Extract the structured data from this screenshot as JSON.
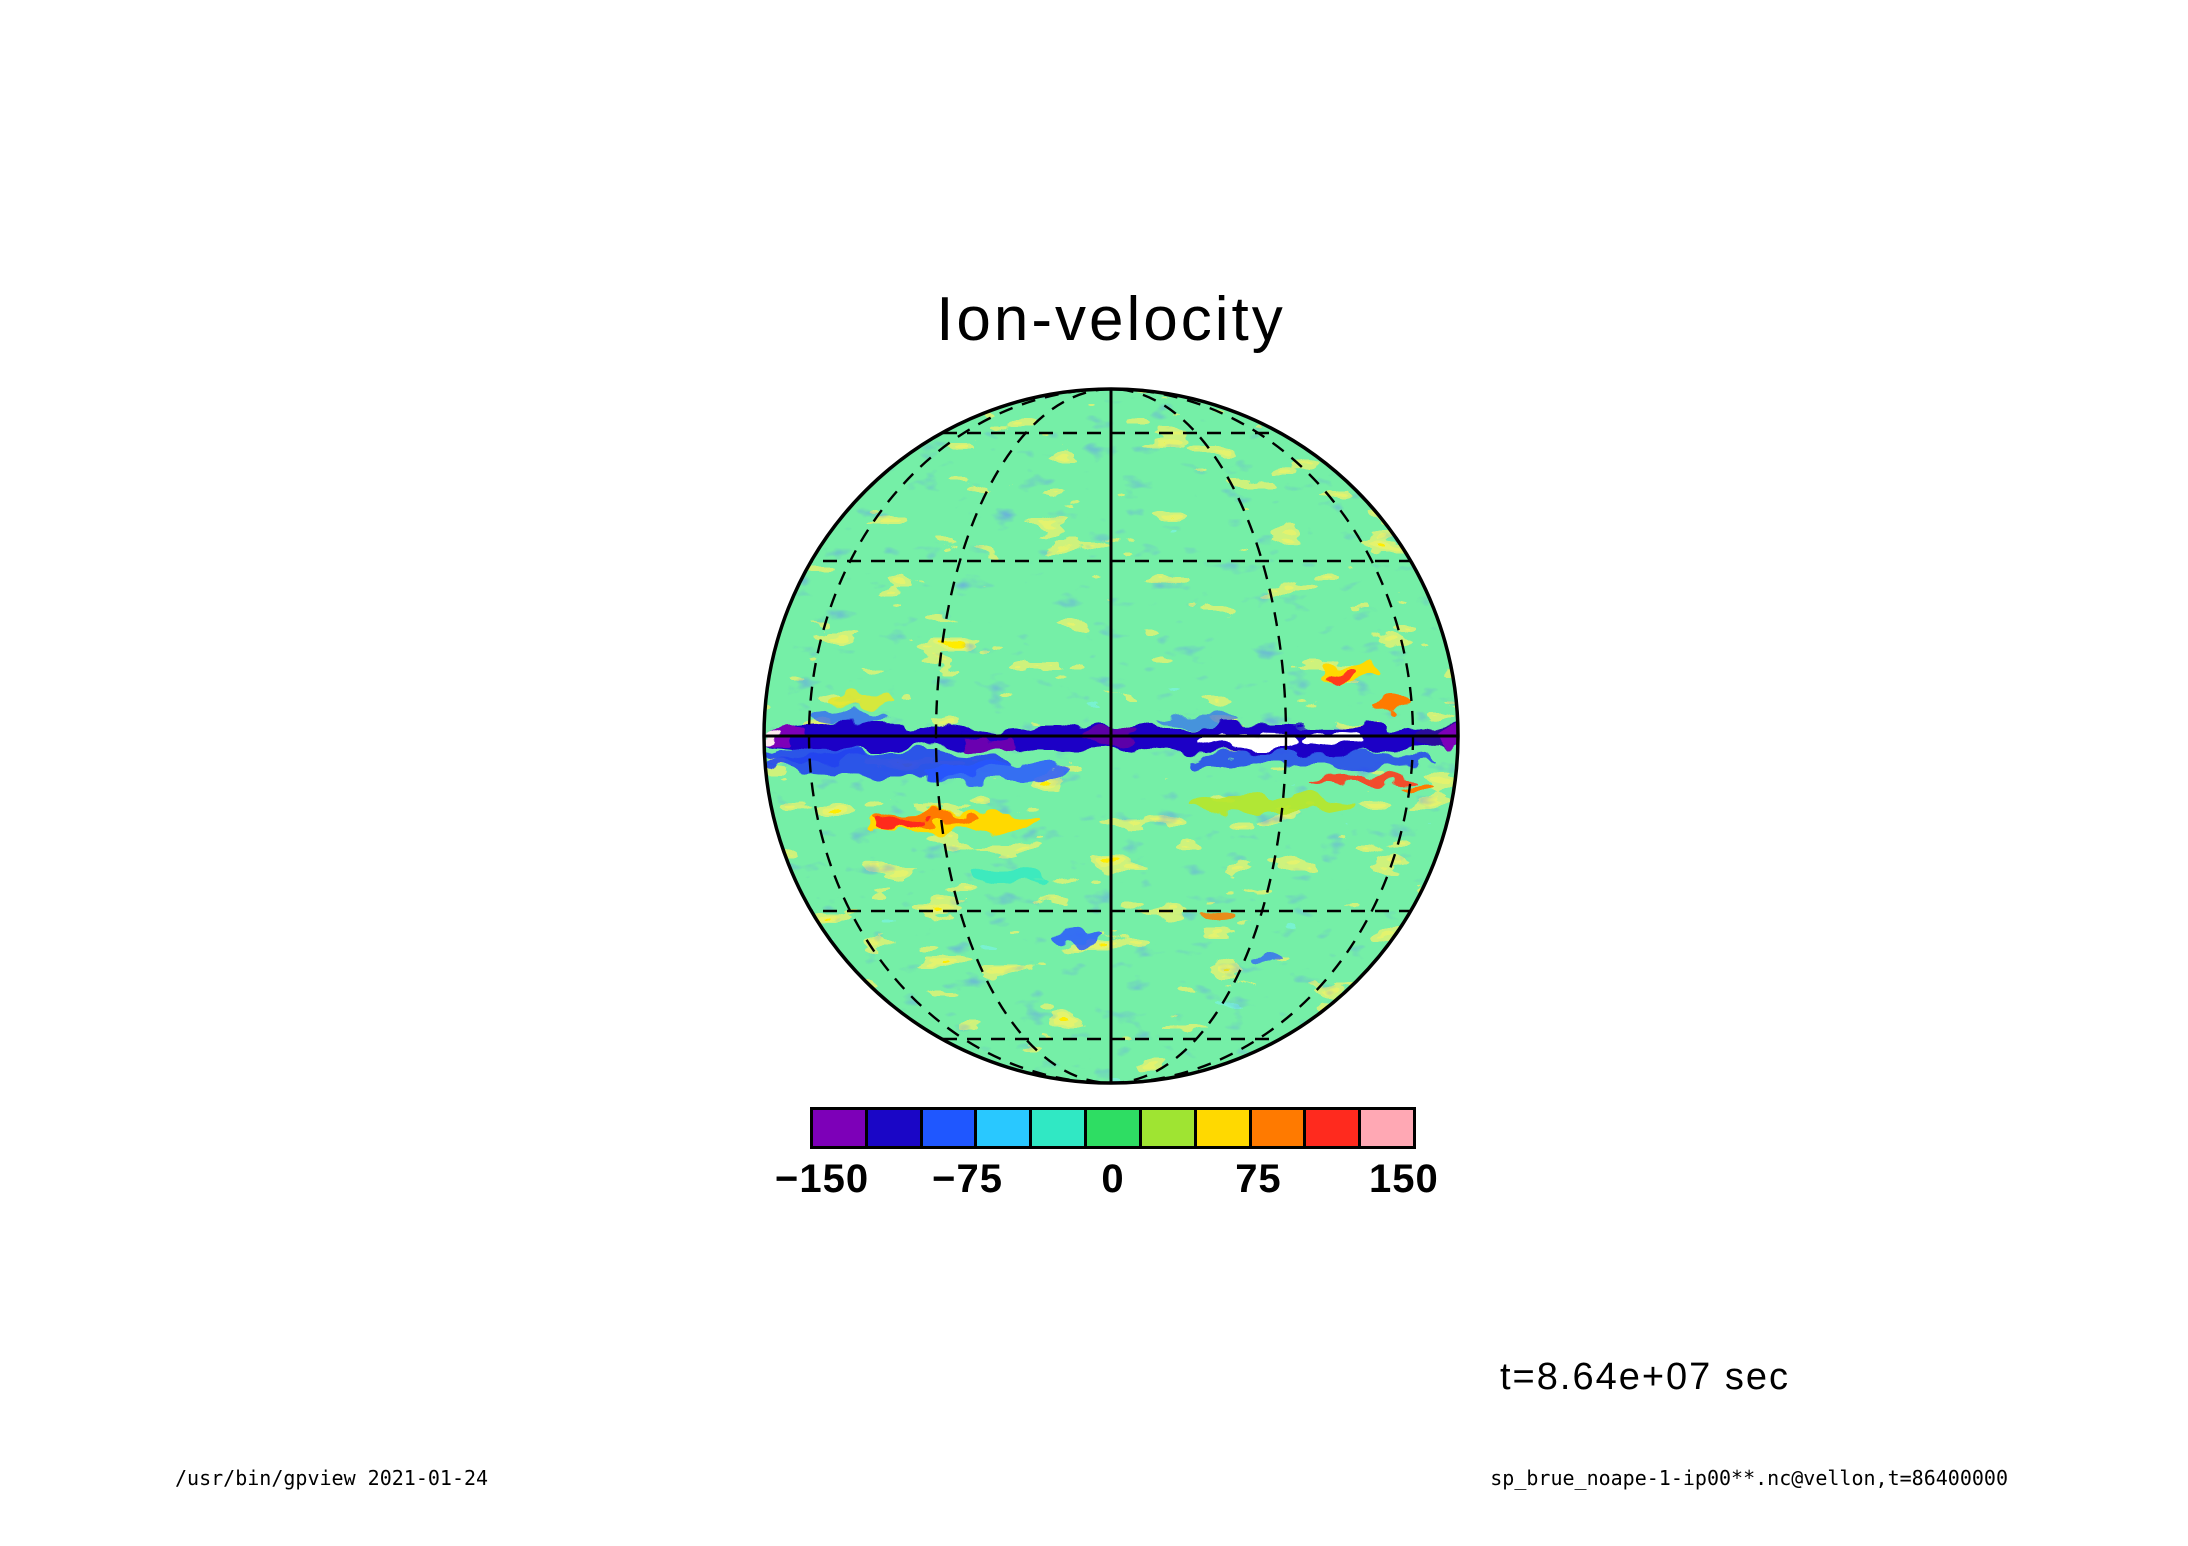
{
  "chart_data": {
    "type": "heatmap",
    "projection": "orthographic-globe",
    "title": "Ion-velocity",
    "time_annotation": "t=8.64e+07 sec",
    "colorbar": {
      "orientation": "horizontal",
      "value_range": [
        -150,
        150
      ],
      "tick_labels": [
        "−150",
        "−75",
        "0",
        "75",
        "150"
      ],
      "tick_positions_pct": [
        2,
        26,
        50,
        74,
        98
      ],
      "segment_colors": [
        "#7d00b8",
        "#1a06c6",
        "#1f57ff",
        "#29c8ff",
        "#30e8c4",
        "#2edd63",
        "#9fe432",
        "#ffd900",
        "#ff7a00",
        "#ff2a1e",
        "#ffa8b4"
      ]
    },
    "graticule": {
      "parallel_spacing_deg": 30,
      "meridian_spacing_deg": 30,
      "style": "dashed grid; solid equator, solid central meridian, solid limb circle"
    },
    "field_summary": {
      "background": "mottled green field (values near 0) with scattered turquoise, yellow-green, yellow, orange and red patches",
      "equatorial_band": "strong negative band along the equator: navy/dark-blue with purple fringes at the limbs and saturated white patches right of center; royal-blue mottling below the band on the left half",
      "other_features": [
        "orange/red streak with yellow fringe below the band, lower-left",
        "yellow-green streak below the band, right of center",
        "thin red/orange fragments just below the right half of the band",
        "small red/orange spots upper right",
        "sparse royal-blue speckles at mid/high latitudes"
      ]
    }
  },
  "footer": {
    "left": "/usr/bin/gpview  2021-01-24",
    "right": "sp_brue_noape-1-ip00**.nc@vellon,t=86400000"
  }
}
